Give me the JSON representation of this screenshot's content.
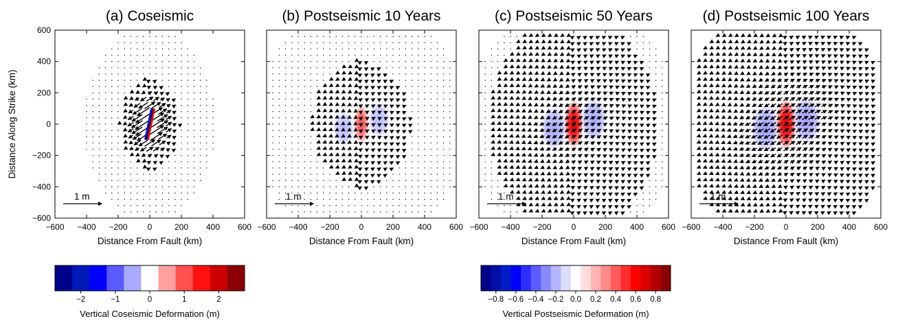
{
  "chart_data": [
    {
      "type": "vector-field",
      "title": "(a) Coseismic",
      "xlabel": "Distance From Fault (km)",
      "ylabel": "Distance Along Strike (km)",
      "xlim": [
        -600,
        600
      ],
      "ylim": [
        -600,
        600
      ],
      "xticks": [
        -600,
        -400,
        -200,
        0,
        200,
        400,
        600
      ],
      "yticks": [
        -600,
        -400,
        -200,
        0,
        200,
        400,
        600
      ],
      "reference_vector": {
        "label": "1 m",
        "length_m": 1
      },
      "fault_trace": {
        "x": [
          -20,
          20
        ],
        "y": [
          -100,
          100
        ]
      },
      "field": {
        "mode": "coseismic",
        "scale_km_per_m": 16
      },
      "colorbar": "coseismic"
    },
    {
      "type": "vector-field",
      "title": "(b) Postseismic 10 Years",
      "xlabel": "Distance From Fault (km)",
      "xlim": [
        -600,
        600
      ],
      "ylim": [
        -600,
        600
      ],
      "xticks": [
        -600,
        -400,
        -200,
        0,
        200,
        400,
        600
      ],
      "reference_vector": {
        "label": "1 m",
        "length_m": 1
      },
      "field": {
        "mode": "postseismic",
        "amplitude": 0.35,
        "reach_km": 220
      },
      "vertical_blobs": {
        "red_peak": 0.3,
        "blue_peak": -0.15
      },
      "colorbar": "postseismic"
    },
    {
      "type": "vector-field",
      "title": "(c) Postseismic 50 Years",
      "xlabel": "Distance From Fault (km)",
      "xlim": [
        -600,
        600
      ],
      "ylim": [
        -600,
        600
      ],
      "xticks": [
        -600,
        -400,
        -200,
        0,
        200,
        400,
        600
      ],
      "reference_vector": {
        "label": "1 m",
        "length_m": 1
      },
      "field": {
        "mode": "postseismic",
        "amplitude": 0.65,
        "reach_km": 330
      },
      "vertical_blobs": {
        "red_peak": 0.8,
        "blue_peak": -0.35
      },
      "colorbar": "postseismic"
    },
    {
      "type": "vector-field",
      "title": "(d) Postseismic 100 Years",
      "xlabel": "Distance From Fault (km)",
      "xlim": [
        -600,
        600
      ],
      "ylim": [
        -600,
        600
      ],
      "xticks": [
        -600,
        -400,
        -200,
        0,
        200,
        400,
        600
      ],
      "reference_vector": {
        "label": "1 m",
        "length_m": 1
      },
      "field": {
        "mode": "postseismic",
        "amplitude": 0.8,
        "reach_km": 380
      },
      "vertical_blobs": {
        "red_peak": 0.95,
        "blue_peak": -0.45
      },
      "colorbar": "postseismic"
    }
  ],
  "colorbars": {
    "coseismic": {
      "label": "Vertical Coseismic Deformation (m)",
      "range": [
        -2.75,
        2.75
      ],
      "ticks": [
        "−2",
        "−1",
        "0",
        "1",
        "2"
      ],
      "tick_values": [
        -2,
        -1,
        0,
        1,
        2
      ],
      "colors": [
        "#00008b",
        "#0019b8",
        "#0000ff",
        "#5a5aff",
        "#a9a9ff",
        "#ffffff",
        "#ffa0a0",
        "#ff5050",
        "#ff1010",
        "#cc0000",
        "#8b0000"
      ]
    },
    "postseismic": {
      "label": "Vertical Postseismic Deformation (m)",
      "range": [
        -0.95,
        0.95
      ],
      "ticks": [
        "−0.8",
        "−0.6",
        "−0.4",
        "−0.2",
        "0.0",
        "0.2",
        "0.4",
        "0.6",
        "0.8"
      ],
      "tick_values": [
        -0.8,
        -0.6,
        -0.4,
        -0.2,
        0.0,
        0.2,
        0.4,
        0.6,
        0.8
      ],
      "colors": [
        "#00008b",
        "#000fa8",
        "#001ec8",
        "#0000ff",
        "#2e2eff",
        "#5c5cff",
        "#8a8aff",
        "#b4b4ff",
        "#dcdcff",
        "#ffffff",
        "#ffdcdc",
        "#ffb4b4",
        "#ff8a8a",
        "#ff5c5c",
        "#ff2e2e",
        "#ff0000",
        "#d80000",
        "#b00000",
        "#8b0000"
      ]
    }
  }
}
